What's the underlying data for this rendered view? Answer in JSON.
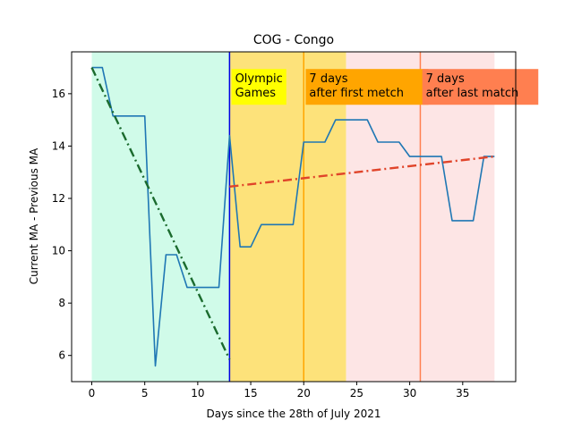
{
  "chart_data": {
    "type": "line",
    "title": "COG - Congo",
    "xlabel": "Days since the 28th of July 2021",
    "ylabel": "Current MA - Previous MA",
    "xlim": [
      -1.9,
      40
    ],
    "ylim": [
      5.0,
      17.6
    ],
    "xticks": [
      0,
      5,
      10,
      15,
      20,
      25,
      30,
      35
    ],
    "yticks": [
      6,
      8,
      10,
      12,
      14,
      16
    ],
    "regions": [
      {
        "x0": 0,
        "x1": 13,
        "color": "#d0fbe9"
      },
      {
        "x0": 13,
        "x1": 24,
        "color": "#fde27a"
      },
      {
        "x0": 24,
        "x1": 38,
        "color": "#fde5e5"
      }
    ],
    "vlines": [
      {
        "x": 13,
        "color": "#0000e0"
      },
      {
        "x": 20,
        "color": "#ffa500"
      },
      {
        "x": 31,
        "color": "#ff7f50"
      }
    ],
    "annotations": [
      {
        "text": [
          "Olympic",
          "Games"
        ],
        "x": 13.1,
        "y": 16.5,
        "bg": "#ffff00"
      },
      {
        "text": [
          "7 days",
          "after first metch"
        ],
        "x": 20.1,
        "y": 16.5,
        "bg": "#ffa500"
      },
      {
        "text": [
          "7 days",
          "after last match"
        ],
        "x": 31.1,
        "y": 16.5,
        "bg": "#ff7f50"
      }
    ],
    "series": [
      {
        "color": "#1f77b4",
        "style": "solid",
        "x": [
          0,
          1,
          2,
          3,
          4,
          5,
          6,
          7,
          8,
          9,
          10,
          11,
          12,
          13,
          14,
          15,
          16,
          17,
          18,
          19,
          20,
          21,
          22,
          23,
          24,
          25,
          26,
          27,
          28,
          29,
          30,
          31,
          32,
          33,
          34,
          35,
          36,
          37,
          38
        ],
        "y": [
          17.0,
          17.0,
          15.15,
          15.15,
          15.15,
          15.15,
          5.6,
          9.85,
          9.85,
          8.6,
          8.6,
          8.6,
          8.6,
          14.4,
          10.15,
          10.15,
          11.0,
          11.0,
          11.0,
          11.0,
          14.15,
          14.15,
          14.15,
          15.0,
          15.0,
          15.0,
          15.0,
          14.15,
          14.15,
          14.15,
          13.6,
          13.6,
          13.6,
          13.6,
          11.15,
          11.15,
          11.15,
          13.6,
          13.6
        ]
      },
      {
        "color": "#1b6b2e",
        "style": "dashdot",
        "x": [
          0,
          13
        ],
        "y": [
          17.0,
          5.85
        ]
      },
      {
        "color": "#e0442a",
        "style": "dashdot",
        "x": [
          13,
          38
        ],
        "y": [
          12.45,
          13.6
        ]
      }
    ]
  }
}
